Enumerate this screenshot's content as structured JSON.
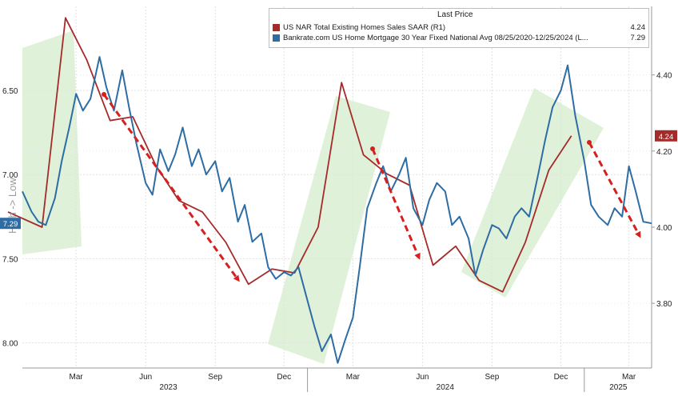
{
  "chart_data": {
    "type": "line",
    "legend": {
      "header": "Last Price",
      "placement": "top-right",
      "entries": [
        {
          "name": "US NAR Total Existing Homes Sales SAAR  (R1)",
          "last_value": "4.24",
          "color": "#a52a2a"
        },
        {
          "name": "Bankrate.com US Home Mortgage 30 Year Fixed National Avg 08/25/2020-12/25/2024  (L...",
          "last_value": "7.29",
          "color": "#2e6ca4"
        }
      ]
    },
    "annotation": "High -> Low",
    "x_axis": {
      "month_labels": [
        "Mar",
        "Jun",
        "Sep",
        "Dec",
        "Mar",
        "Jun",
        "Sep",
        "Dec",
        "Mar"
      ],
      "year_labels": [
        "2023",
        "2024",
        "2025"
      ],
      "range": [
        "2022-12-20",
        "2025-03-31"
      ]
    },
    "left_axis": {
      "inverted": true,
      "ticks": [
        "6.50",
        "7.00",
        "7.50",
        "8.00"
      ],
      "range": [
        6.0,
        8.15
      ],
      "current_label": "7.29"
    },
    "right_axis": {
      "ticks": [
        "4.40",
        "4.20",
        "4.00",
        "3.80"
      ],
      "range": [
        3.63,
        4.58
      ],
      "current_label": "4.24"
    },
    "grid": true,
    "series": [
      {
        "name": "US NAR Total Existing Homes Sales SAAR",
        "axis": "right",
        "color": "#a52a2a",
        "x": [
          "2022-12-01",
          "2023-01-15",
          "2023-02-15",
          "2023-03-15",
          "2023-04-15",
          "2023-05-15",
          "2023-06-15",
          "2023-07-15",
          "2023-08-15",
          "2023-09-15",
          "2023-10-15",
          "2023-11-15",
          "2023-12-15",
          "2024-01-15",
          "2024-02-15",
          "2024-03-15",
          "2024-04-15",
          "2024-05-15",
          "2024-06-15",
          "2024-07-15",
          "2024-08-15",
          "2024-09-15",
          "2024-10-15",
          "2024-11-15",
          "2024-12-15"
        ],
        "y": [
          4.04,
          4.0,
          4.55,
          4.44,
          4.28,
          4.29,
          4.16,
          4.07,
          4.04,
          3.96,
          3.85,
          3.89,
          3.88,
          4.0,
          4.38,
          4.19,
          4.14,
          4.11,
          3.9,
          3.95,
          3.86,
          3.83,
          3.96,
          4.15,
          4.24
        ]
      },
      {
        "name": "Bankrate.com US Home Mortgage 30 Year Fixed National Avg",
        "axis": "left",
        "color": "#2e6ca4",
        "x": [
          "2022-12-20",
          "2023-01-01",
          "2023-01-10",
          "2023-01-20",
          "2023-02-01",
          "2023-02-10",
          "2023-02-20",
          "2023-03-01",
          "2023-03-10",
          "2023-03-20",
          "2023-04-01",
          "2023-04-10",
          "2023-04-20",
          "2023-05-01",
          "2023-05-10",
          "2023-05-20",
          "2023-06-01",
          "2023-06-10",
          "2023-06-20",
          "2023-07-01",
          "2023-07-10",
          "2023-07-20",
          "2023-08-01",
          "2023-08-10",
          "2023-08-20",
          "2023-09-01",
          "2023-09-10",
          "2023-09-20",
          "2023-10-01",
          "2023-10-10",
          "2023-10-20",
          "2023-11-01",
          "2023-11-10",
          "2023-11-20",
          "2023-12-01",
          "2023-12-10",
          "2023-12-20",
          "2024-01-01",
          "2024-01-10",
          "2024-01-20",
          "2024-02-01",
          "2024-02-10",
          "2024-02-20",
          "2024-03-01",
          "2024-03-10",
          "2024-03-20",
          "2024-04-01",
          "2024-04-10",
          "2024-04-20",
          "2024-05-01",
          "2024-05-10",
          "2024-05-20",
          "2024-06-01",
          "2024-06-10",
          "2024-06-20",
          "2024-07-01",
          "2024-07-10",
          "2024-07-20",
          "2024-08-01",
          "2024-08-10",
          "2024-08-20",
          "2024-09-01",
          "2024-09-10",
          "2024-09-20",
          "2024-10-01",
          "2024-10-10",
          "2024-10-20",
          "2024-11-01",
          "2024-11-10",
          "2024-11-20",
          "2024-12-01",
          "2024-12-10",
          "2024-12-20",
          "2025-01-01",
          "2025-01-10",
          "2025-01-20",
          "2025-02-01",
          "2025-02-10",
          "2025-02-20",
          "2025-03-01",
          "2025-03-10",
          "2025-03-20",
          "2025-03-31"
        ],
        "y": [
          7.1,
          7.22,
          7.28,
          7.3,
          7.14,
          6.92,
          6.72,
          6.52,
          6.62,
          6.55,
          6.3,
          6.48,
          6.62,
          6.38,
          6.6,
          6.82,
          7.05,
          7.12,
          6.85,
          6.98,
          6.88,
          6.72,
          6.95,
          6.85,
          7.0,
          6.92,
          7.1,
          7.02,
          7.28,
          7.18,
          7.4,
          7.35,
          7.55,
          7.62,
          7.58,
          7.6,
          7.55,
          7.75,
          7.9,
          8.05,
          7.95,
          8.12,
          7.98,
          7.85,
          7.55,
          7.2,
          7.05,
          6.95,
          7.1,
          7.0,
          6.9,
          7.2,
          7.3,
          7.15,
          7.05,
          7.1,
          7.3,
          7.25,
          7.38,
          7.6,
          7.45,
          7.3,
          7.32,
          7.38,
          7.25,
          7.2,
          7.25,
          7.0,
          6.8,
          6.6,
          6.5,
          6.35,
          6.65,
          6.92,
          7.18,
          7.25,
          7.3,
          7.2,
          7.25,
          6.95,
          7.1,
          7.28,
          7.29
        ]
      }
    ]
  },
  "highlights": {
    "fill": "#d9efd2"
  },
  "arrows": {
    "color": "#d62020"
  }
}
